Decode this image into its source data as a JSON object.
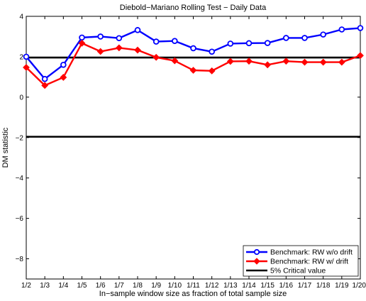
{
  "chart_data": {
    "type": "line",
    "title": "Diebold−Mariano Rolling Test − Daily Data",
    "xlabel": "In−sample window size as fraction of total sample size",
    "ylabel": "DM statistic",
    "categories": [
      "1/2",
      "1/3",
      "1/4",
      "1/5",
      "1/6",
      "1/7",
      "1/8",
      "1/9",
      "1/10",
      "1/11",
      "1/12",
      "1/13",
      "1/14",
      "1/15",
      "1/16",
      "1/17",
      "1/18",
      "1/19",
      "1/20"
    ],
    "ylim": [
      -9,
      4
    ],
    "yticks": [
      -8,
      -6,
      -4,
      -2,
      0,
      2,
      4
    ],
    "grid": false,
    "legend_position": "bottom-right",
    "series": [
      {
        "name": "Benchmark: RW w/o drift",
        "color": "#0000ff",
        "marker": "circle",
        "values": [
          2.0,
          0.9,
          1.6,
          2.95,
          3.0,
          2.92,
          3.32,
          2.75,
          2.78,
          2.42,
          2.25,
          2.65,
          2.67,
          2.68,
          2.93,
          2.93,
          3.1,
          3.35,
          3.42
        ]
      },
      {
        "name": "Benchmark: RW w/ drift",
        "color": "#ff0000",
        "marker": "diamond",
        "values": [
          1.47,
          0.58,
          0.98,
          2.67,
          2.26,
          2.44,
          2.33,
          1.97,
          1.8,
          1.33,
          1.3,
          1.77,
          1.78,
          1.6,
          1.78,
          1.73,
          1.73,
          1.73,
          2.06
        ]
      }
    ],
    "reference_lines": {
      "name": "5% Critical value",
      "color": "#000000",
      "values": [
        1.96,
        -1.96
      ]
    }
  }
}
